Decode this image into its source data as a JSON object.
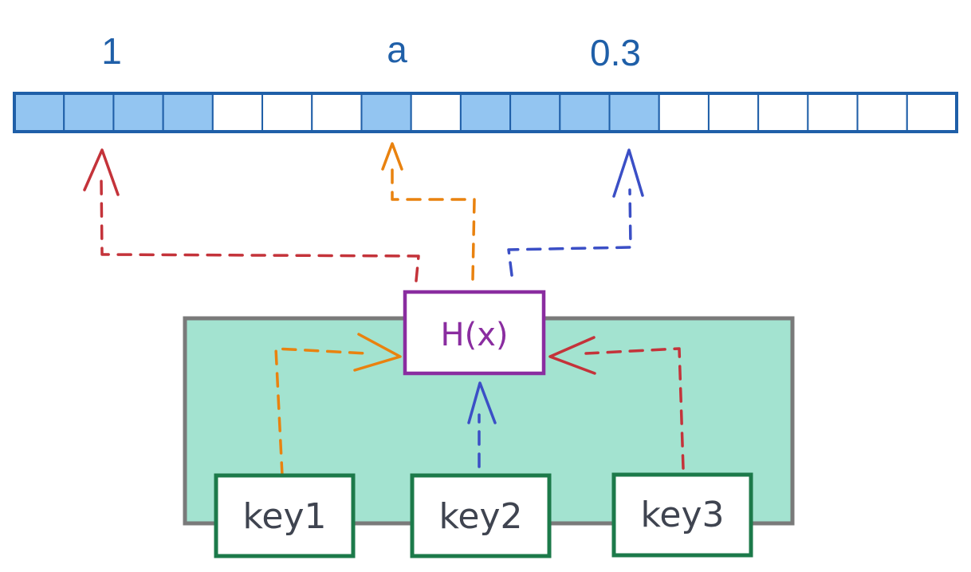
{
  "array": {
    "cell_count": 19,
    "filled_cells": [
      0,
      1,
      2,
      3,
      7,
      9,
      10,
      11,
      12
    ],
    "fill_color": "#93c5f1",
    "stroke_color": "#1f5fa8"
  },
  "values": [
    {
      "text": "1"
    },
    {
      "text": "a"
    },
    {
      "text": "0.3"
    }
  ],
  "hash": {
    "label": "H(x)",
    "stroke_color": "#8a2da0"
  },
  "keys": [
    {
      "label": "key1"
    },
    {
      "label": "key2"
    },
    {
      "label": "key3"
    }
  ],
  "container": {
    "fill_color": "#a3e3d0",
    "stroke_color": "#7a7a7a"
  },
  "colors": {
    "red": "#c4333a",
    "orange": "#e9820f",
    "blue": "#3b4fc6",
    "key_border": "#1c7a4a"
  }
}
